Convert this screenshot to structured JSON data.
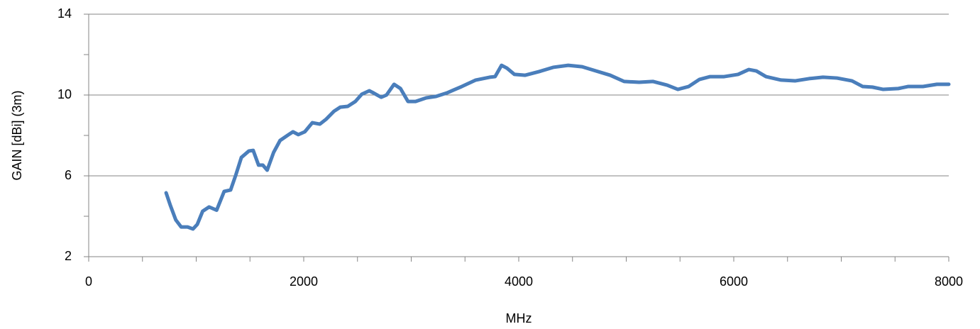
{
  "chart_data": {
    "type": "line",
    "xlabel": "MHz",
    "ylabel": "GAIN [dBi] (3m)",
    "x": [
      720,
      760,
      810,
      860,
      920,
      970,
      1010,
      1060,
      1120,
      1190,
      1260,
      1320,
      1370,
      1420,
      1490,
      1530,
      1580,
      1620,
      1660,
      1720,
      1780,
      1860,
      1900,
      1950,
      2010,
      2080,
      2150,
      2210,
      2280,
      2340,
      2410,
      2480,
      2540,
      2610,
      2650,
      2720,
      2770,
      2840,
      2900,
      2970,
      3040,
      3140,
      3230,
      3330,
      3470,
      3600,
      3730,
      3780,
      3840,
      3890,
      3960,
      4060,
      4190,
      4320,
      4460,
      4590,
      4720,
      4850,
      4980,
      5120,
      5250,
      5380,
      5480,
      5580,
      5680,
      5780,
      5910,
      6040,
      6140,
      6210,
      6300,
      6440,
      6570,
      6700,
      6830,
      6960,
      7100,
      7200,
      7290,
      7390,
      7530,
      7620,
      7760,
      7890,
      8000
    ],
    "series": [
      {
        "name": "GAIN",
        "color": "#4a7ebb",
        "values": [
          5.16,
          4.53,
          3.82,
          3.47,
          3.47,
          3.37,
          3.6,
          4.25,
          4.46,
          4.3,
          5.23,
          5.3,
          6.07,
          6.91,
          7.23,
          7.26,
          6.53,
          6.53,
          6.28,
          7.16,
          7.75,
          8.04,
          8.18,
          8.04,
          8.18,
          8.63,
          8.56,
          8.81,
          9.19,
          9.4,
          9.44,
          9.68,
          10.04,
          10.21,
          10.1,
          9.89,
          10.0,
          10.53,
          10.32,
          9.68,
          9.68,
          9.86,
          9.93,
          10.1,
          10.42,
          10.74,
          10.88,
          10.91,
          11.47,
          11.33,
          11.02,
          10.98,
          11.16,
          11.37,
          11.47,
          11.4,
          11.19,
          10.98,
          10.67,
          10.63,
          10.67,
          10.49,
          10.28,
          10.42,
          10.77,
          10.91,
          10.91,
          11.02,
          11.26,
          11.19,
          10.91,
          10.74,
          10.7,
          10.81,
          10.88,
          10.84,
          10.7,
          10.42,
          10.39,
          10.28,
          10.32,
          10.42,
          10.42,
          10.53,
          10.53
        ]
      }
    ],
    "xlim": [
      0,
      8000
    ],
    "xticks": [
      0,
      2000,
      4000,
      6000,
      8000
    ],
    "ylim": [
      2,
      14
    ],
    "yticks": [
      2,
      6,
      10,
      14
    ],
    "grid": true
  }
}
